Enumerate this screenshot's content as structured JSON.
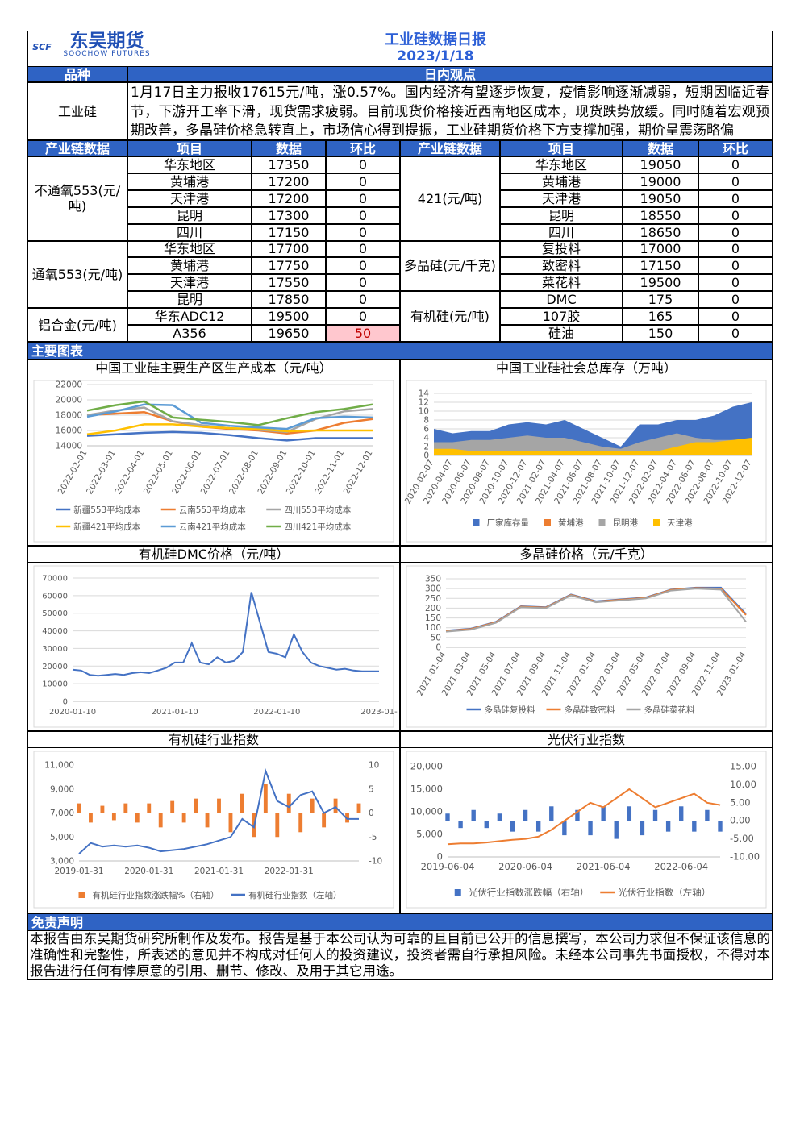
{
  "header": {
    "logo_mark": "SCF",
    "logo": "东吴期货",
    "logo_en": "SOOCHOW FUTURES",
    "title": "工业硅数据日报",
    "date": "2023/1/18"
  },
  "view": {
    "headers": [
      "品种",
      "日内观点"
    ],
    "variety": "工业硅",
    "text": "1月17日主力报收17615元/吨，涨0.57%。国内经济有望逐步恢复，疫情影响逐渐减弱，短期因临近春节，下游开工率下滑，现货需求疲弱。目前现货价格接近西南地区成本，现货跌势放缓。同时随着宏观预期改善，多晶硅价格急转直上，市场信心得到提振，工业硅期货价格下方支撑加强，期价呈震荡略偏"
  },
  "table": {
    "headers": [
      "产业链数据",
      "项目",
      "数据",
      "环比"
    ],
    "left": [
      {
        "group": "不通氧553(元/吨)",
        "rows": [
          [
            "华东地区",
            17350,
            0
          ],
          [
            "黄埔港",
            17200,
            0
          ],
          [
            "天津港",
            17200,
            0
          ],
          [
            "昆明",
            17300,
            0
          ],
          [
            "四川",
            17150,
            0
          ]
        ]
      },
      {
        "group": "通氧553(元/吨)",
        "rows": [
          [
            "华东地区",
            17700,
            0
          ],
          [
            "黄埔港",
            17750,
            0
          ],
          [
            "天津港",
            17550,
            0
          ],
          [
            "昆明",
            17850,
            0
          ]
        ]
      },
      {
        "group": "铝合金(元/吨)",
        "rows": [
          [
            "华东ADC12",
            19500,
            0
          ],
          [
            "A356",
            19650,
            50
          ]
        ]
      }
    ],
    "right": [
      {
        "group": "421(元/吨)",
        "rows": [
          [
            "华东地区",
            19050,
            0
          ],
          [
            "黄埔港",
            19000,
            0
          ],
          [
            "天津港",
            19050,
            0
          ],
          [
            "昆明",
            18550,
            0
          ],
          [
            "四川",
            18650,
            0
          ]
        ]
      },
      {
        "group": "多晶硅(元/千克)",
        "rows": [
          [
            "复投料",
            17000,
            0
          ],
          [
            "致密料",
            17150,
            0
          ],
          [
            "菜花料",
            19500,
            0
          ]
        ]
      },
      {
        "group": "有机硅(元/吨)",
        "rows": [
          [
            "DMC",
            175,
            0
          ],
          [
            "107胶",
            165,
            0
          ],
          [
            "硅油",
            150,
            0
          ]
        ]
      }
    ]
  },
  "charts_heading": "主要图表",
  "chart_data": [
    {
      "type": "line",
      "title": "中国工业硅主要生产区生产成本（元/吨）",
      "categories": [
        "2022-02-01",
        "2022-03-01",
        "2022-04-01",
        "2022-05-01",
        "2022-06-01",
        "2022-07-01",
        "2022-08-01",
        "2022-09-01",
        "2022-10-01",
        "2022-11-01",
        "2022-12-01"
      ],
      "ylim": [
        14000,
        22000
      ],
      "yticks": [
        14000,
        16000,
        18000,
        20000,
        22000
      ],
      "grid": true,
      "series": [
        {
          "name": "新疆553平均成本",
          "color": "#4472c4",
          "values": [
            15300,
            15500,
            15700,
            15800,
            15700,
            15400,
            15000,
            14700,
            15000,
            15000,
            15000
          ]
        },
        {
          "name": "云南553平均成本",
          "color": "#ed7d31",
          "values": [
            18000,
            18200,
            18400,
            17200,
            16500,
            16200,
            16000,
            15600,
            16000,
            17000,
            17500
          ]
        },
        {
          "name": "四川553平均成本",
          "color": "#a5a5a5",
          "values": [
            18000,
            18600,
            19000,
            17200,
            16700,
            16300,
            16100,
            15800,
            17500,
            18500,
            18800
          ]
        },
        {
          "name": "新疆421平均成本",
          "color": "#ffc000",
          "values": [
            15500,
            16000,
            16800,
            16800,
            16500,
            16300,
            16200,
            15900,
            16000,
            16000,
            16000
          ]
        },
        {
          "name": "云南421平均成本",
          "color": "#5b9bd5",
          "values": [
            17800,
            18500,
            19400,
            19300,
            17000,
            16600,
            16400,
            16200,
            17600,
            17800,
            17700
          ]
        },
        {
          "name": "四川421平均成本",
          "color": "#70ad47",
          "values": [
            18600,
            19300,
            19800,
            17700,
            17400,
            17100,
            16700,
            17600,
            18400,
            18800,
            19400
          ]
        }
      ]
    },
    {
      "type": "area",
      "title": "中国工业硅社会总库存（万吨）",
      "categories": [
        "2020-02-07",
        "2020-04-07",
        "2020-06-07",
        "2020-08-07",
        "2020-10-07",
        "2020-12-07",
        "2021-02-07",
        "2021-04-07",
        "2021-06-07",
        "2021-08-07",
        "2021-10-07",
        "2021-12-07",
        "2022-02-07",
        "2022-04-07",
        "2022-06-07",
        "2022-08-07",
        "2022-10-07",
        "2022-12-07"
      ],
      "ylim": [
        0,
        14
      ],
      "yticks": [
        0,
        2,
        4,
        6,
        8,
        10,
        12,
        14
      ],
      "grid": true,
      "series": [
        {
          "name": "厂家库存量",
          "color": "#4472c4",
          "values": [
            6,
            5,
            5.5,
            5.5,
            7,
            7.5,
            7,
            8,
            6,
            4,
            2,
            7,
            7,
            8,
            8,
            9,
            11,
            12
          ]
        },
        {
          "name": "黄埔港",
          "color": "#ed7d31",
          "values": [
            1,
            1,
            1,
            1,
            1,
            1,
            1,
            1,
            1,
            1,
            1.5,
            1,
            1,
            1,
            1,
            1,
            1,
            1
          ]
        },
        {
          "name": "昆明港",
          "color": "#a5a5a5",
          "values": [
            3,
            3,
            3.5,
            3.5,
            4,
            4.5,
            4,
            4,
            3,
            2,
            1.5,
            3,
            4,
            5,
            4,
            3.5,
            3.5,
            3.5
          ]
        },
        {
          "name": "天津港",
          "color": "#ffc000",
          "values": [
            1.5,
            1.5,
            1,
            1,
            1,
            1,
            1,
            1,
            1,
            1,
            1,
            1,
            1,
            2,
            3,
            3,
            3.5,
            4
          ]
        }
      ]
    },
    {
      "type": "line",
      "title": "有机硅DMC价格（元/吨）",
      "categories": [
        "2020-01-10",
        null,
        null,
        null,
        null,
        null,
        null,
        null,
        null,
        null,
        null,
        null,
        "2021-01-10",
        null,
        null,
        null,
        null,
        null,
        null,
        null,
        null,
        null,
        null,
        null,
        "2022-01-10",
        null,
        null,
        null,
        null,
        null,
        null,
        null,
        null,
        null,
        null,
        null,
        "2023-01-"
      ],
      "ylim": [
        0,
        70000
      ],
      "yticks": [
        0,
        10000,
        20000,
        30000,
        40000,
        50000,
        60000,
        70000
      ],
      "grid": true,
      "series": [
        {
          "name": null,
          "color": "#4472c4",
          "values": [
            18000,
            17500,
            15000,
            14500,
            15000,
            15500,
            15000,
            16000,
            16500,
            16000,
            17500,
            19000,
            22000,
            22000,
            33000,
            22000,
            21000,
            25000,
            22000,
            23000,
            28000,
            62000,
            45000,
            28000,
            27000,
            25000,
            38000,
            28000,
            22000,
            20000,
            19000,
            18000,
            18500,
            17500,
            17000,
            17000,
            17000
          ]
        }
      ]
    },
    {
      "type": "line",
      "title": "多晶硅价格（元/千克）",
      "categories": [
        "2021-01-04",
        "2021-03-04",
        "2021-05-04",
        "2021-07-04",
        "2021-09-04",
        "2021-11-04",
        "2022-01-04",
        "2022-03-04",
        "2022-05-04",
        "2022-07-04",
        "2022-09-04",
        "2022-11-04",
        "2023-01-04"
      ],
      "ylim": [
        0,
        350
      ],
      "yticks": [
        0,
        50,
        100,
        150,
        200,
        250,
        300,
        350
      ],
      "grid": true,
      "series": [
        {
          "name": "多晶硅复投料",
          "color": "#4472c4",
          "values": [
            85,
            95,
            130,
            210,
            205,
            270,
            235,
            245,
            255,
            295,
            305,
            305,
            170
          ]
        },
        {
          "name": "多晶硅致密料",
          "color": "#ed7d31",
          "values": [
            83,
            93,
            128,
            208,
            203,
            268,
            233,
            243,
            253,
            293,
            303,
            300,
            165
          ]
        },
        {
          "name": "多晶硅菜花料",
          "color": "#a5a5a5",
          "values": [
            80,
            90,
            125,
            205,
            200,
            265,
            230,
            240,
            250,
            290,
            300,
            295,
            130
          ]
        }
      ]
    },
    {
      "type": "combo",
      "title": "有机硅行业指数",
      "categories": [
        "2019-01-31",
        null,
        null,
        null,
        null,
        null,
        "2020-01-31",
        null,
        null,
        null,
        null,
        null,
        "2021-01-31",
        null,
        null,
        null,
        null,
        null,
        "2022-01-31",
        null,
        null,
        null,
        null,
        null,
        null
      ],
      "ylim": [
        3000,
        11000
      ],
      "yticks": [
        {
          "value": 3000,
          "label": "3,000"
        },
        {
          "value": 5000,
          "label": "5,000"
        },
        {
          "value": 7000,
          "label": "7,000"
        },
        {
          "value": 9000,
          "label": "9,000"
        },
        {
          "value": 11000,
          "label": "11,000"
        }
      ],
      "y2lim": [
        -10,
        10
      ],
      "y2ticks": [
        -10,
        -5,
        0,
        5,
        10
      ],
      "grid": false,
      "series": [
        {
          "name": "有机硅行业指数涨跌幅%（右轴）",
          "color": "#ed7d31",
          "type": "bar",
          "axis": "y2",
          "values": [
            2,
            -2,
            1.5,
            -1.5,
            2,
            -2,
            2,
            -3,
            2.5,
            -2,
            3,
            -3,
            3,
            -4,
            4,
            -5,
            6,
            -5,
            4,
            -4,
            3,
            -3,
            3,
            -2,
            2
          ]
        },
        {
          "name": "有机硅行业指数（左轴）",
          "color": "#4472c4",
          "type": "line",
          "values": [
            3600,
            4500,
            4200,
            4300,
            4200,
            4300,
            4100,
            3800,
            3900,
            4000,
            4200,
            4400,
            4700,
            5000,
            6500,
            5800,
            10500,
            8000,
            7500,
            8500,
            8800,
            7000,
            7500,
            6500,
            6500
          ]
        }
      ]
    },
    {
      "type": "combo",
      "title": "光伏行业指数",
      "categories": [
        "2019-06-04",
        null,
        null,
        null,
        null,
        null,
        "2020-06-04",
        null,
        null,
        null,
        null,
        null,
        "2021-06-04",
        null,
        null,
        null,
        null,
        null,
        "2022-06-04",
        null,
        null,
        null
      ],
      "ylim": [
        0,
        20000
      ],
      "yticks": [
        0,
        {
          "value": 5000,
          "label": "5,000"
        },
        {
          "value": 10000,
          "label": "10,000"
        },
        {
          "value": 15000,
          "label": "15,000"
        },
        {
          "value": 20000,
          "label": "20,000"
        }
      ],
      "y2lim": [
        -10,
        15
      ],
      "y2ticks": [
        {
          "value": -10,
          "label": "-10.00"
        },
        {
          "value": -5,
          "label": "-5.00"
        },
        {
          "value": 0,
          "label": "0.00"
        },
        {
          "value": 5,
          "label": "5.00"
        },
        {
          "value": 10,
          "label": "10.00"
        },
        {
          "value": 15,
          "label": "15.00"
        }
      ],
      "grid": false,
      "series": [
        {
          "name": "光伏行业指数涨跌幅（右轴）",
          "color": "#4472c4",
          "type": "bar",
          "axis": "y2",
          "values": [
            2,
            -2,
            3,
            -2,
            2,
            -3,
            3,
            -3,
            4,
            -4,
            3,
            -4,
            4,
            -5,
            4,
            -4,
            3,
            -3,
            4,
            -3,
            3,
            -3
          ]
        },
        {
          "name": "光伏行业指数（左轴）",
          "color": "#ed7d31",
          "type": "line",
          "values": [
            2800,
            3000,
            3000,
            3200,
            3500,
            3800,
            4000,
            4500,
            6000,
            8000,
            10000,
            12000,
            11000,
            13000,
            15000,
            13000,
            11000,
            12000,
            13000,
            14000,
            12000,
            11500
          ]
        }
      ]
    }
  ],
  "disclaimer": {
    "heading": "免责声明",
    "text": "本报告由东吴期货研究所制作及发布。报告是基于本公司认为可靠的且目前已公开的信息撰写，本公司力求但不保证该信息的准确性和完整性，所表述的意见并不构成对任何人的投资建议，投资者需自行承担风险。未经本公司事先书面授权，不得对本报告进行任何有悖原意的引用、删节、修改、及用于其它用途。"
  }
}
